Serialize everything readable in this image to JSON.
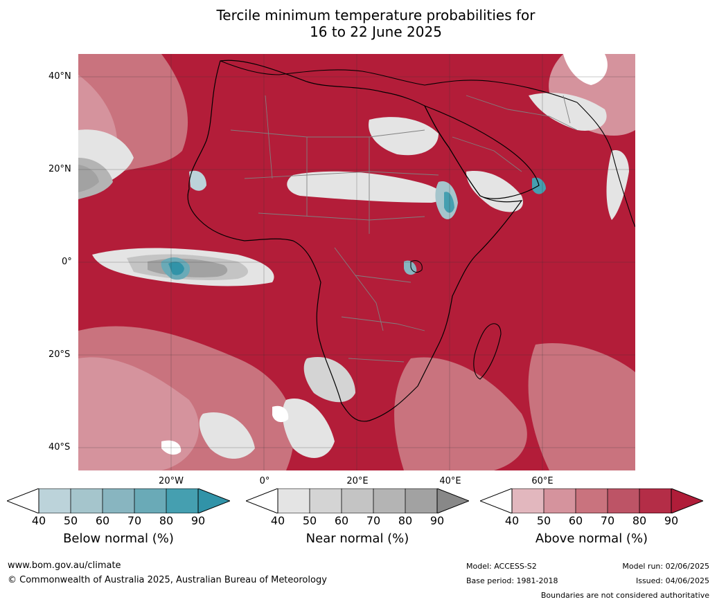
{
  "title": {
    "line1": "Tercile minimum temperature probabilities for",
    "line2": "16 to 22 June 2025"
  },
  "map": {
    "region": "Africa",
    "lat_labels": [
      "40°N",
      "20°N",
      "0°",
      "20°S",
      "40°S"
    ],
    "lon_labels": [
      "20°W",
      "0°",
      "20°E",
      "40°E",
      "60°E"
    ],
    "dominant_category": "Above normal",
    "colors": {
      "ocean_above": "#b31d39",
      "land_border": "#000000",
      "country_border": "#808080"
    }
  },
  "colorbars": [
    {
      "label": "Below normal (%)",
      "ticks": [
        "40",
        "50",
        "60",
        "70",
        "80",
        "90"
      ],
      "colors": [
        "#ffffff",
        "#bcd3da",
        "#a5c5cc",
        "#88b5c0",
        "#6aaab7",
        "#459fb0",
        "#3193a8"
      ]
    },
    {
      "label": "Near normal (%)",
      "ticks": [
        "40",
        "50",
        "60",
        "70",
        "80",
        "90"
      ],
      "colors": [
        "#ffffff",
        "#e4e4e4",
        "#d4d4d4",
        "#c4c4c4",
        "#b4b4b4",
        "#a2a2a2",
        "#888888"
      ]
    },
    {
      "label": "Above normal (%)",
      "ticks": [
        "40",
        "50",
        "60",
        "70",
        "80",
        "90"
      ],
      "colors": [
        "#ffffff",
        "#e2b7be",
        "#d5939d",
        "#c9737e",
        "#bd5466",
        "#b42d47",
        "#b01d39"
      ]
    }
  ],
  "footer": {
    "website": "www.bom.gov.au/climate",
    "copyright": "© Commonwealth of Australia 2025, Australian Bureau of Meteorology",
    "model": "Model: ACCESS-S2",
    "base_period": "Base period: 1981-2018",
    "model_run": "Model run: 02/06/2025",
    "issued": "Issued: 04/06/2025",
    "disclaimer": "Boundaries are not considered authoritative"
  }
}
